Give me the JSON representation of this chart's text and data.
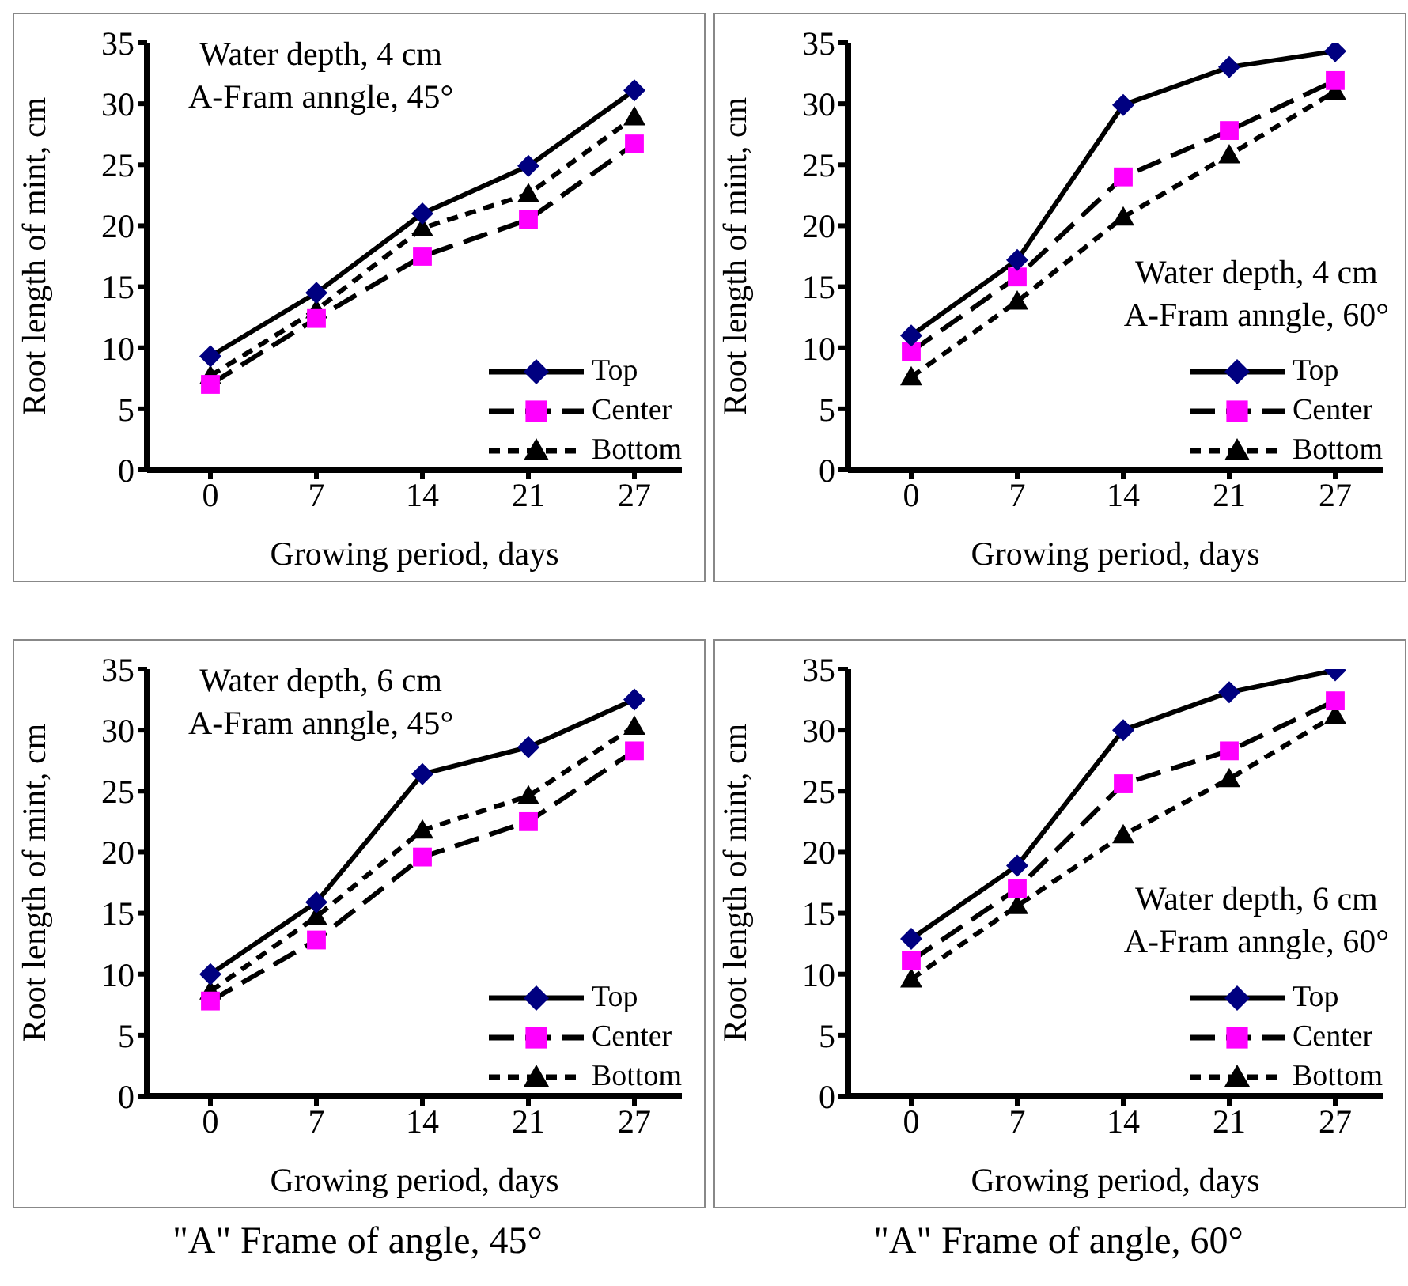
{
  "chart_data": [
    {
      "type": "line",
      "title": "Water depth, 4 cm",
      "subtitle": "A-Fram anngle, 45°",
      "xlabel": "Growing period, days",
      "ylabel": "Root length of mint, cm",
      "categories": [
        "0",
        "7",
        "14",
        "21",
        "27"
      ],
      "ylim": [
        0,
        35
      ],
      "yticks": [
        0,
        5,
        10,
        15,
        20,
        25,
        30,
        35
      ],
      "grid": false,
      "legend": "bottom right",
      "series": [
        {
          "name": "Top",
          "color": "#000080",
          "marker": "diamond",
          "line_style": "solid",
          "values": [
            9.3,
            14.5,
            21.0,
            24.9,
            31.1
          ]
        },
        {
          "name": "Center",
          "color": "#ff00ff",
          "marker": "square",
          "line_style": "dashed",
          "values": [
            7.0,
            12.4,
            17.5,
            20.5,
            26.7
          ]
        },
        {
          "name": "Bottom",
          "color": "#000000",
          "marker": "triangle",
          "line_style": "dotted",
          "values": [
            7.7,
            13.1,
            19.8,
            22.6,
            28.9
          ]
        }
      ]
    },
    {
      "type": "line",
      "title": "Water depth, 4 cm",
      "subtitle": "A-Fram anngle, 60°",
      "xlabel": "Growing period, days",
      "ylabel": "Root length of mint, cm",
      "categories": [
        "0",
        "7",
        "14",
        "21",
        "27"
      ],
      "ylim": [
        0,
        35
      ],
      "yticks": [
        0,
        5,
        10,
        15,
        20,
        25,
        30,
        35
      ],
      "grid": false,
      "legend": "bottom right",
      "series": [
        {
          "name": "Top",
          "color": "#000080",
          "marker": "diamond",
          "line_style": "solid",
          "values": [
            11.0,
            17.2,
            29.9,
            33.0,
            34.3
          ]
        },
        {
          "name": "Center",
          "color": "#ff00ff",
          "marker": "square",
          "line_style": "dashed",
          "values": [
            9.7,
            15.8,
            24.0,
            27.8,
            31.9
          ]
        },
        {
          "name": "Bottom",
          "color": "#000000",
          "marker": "triangle",
          "line_style": "dotted",
          "values": [
            7.6,
            13.8,
            20.7,
            25.8,
            31.0
          ]
        }
      ]
    },
    {
      "type": "line",
      "title": "Water depth, 6 cm",
      "subtitle": "A-Fram anngle, 45°",
      "xlabel": "Growing period, days",
      "ylabel": "Root length of mint, cm",
      "categories": [
        "0",
        "7",
        "14",
        "21",
        "27"
      ],
      "ylim": [
        0,
        35
      ],
      "yticks": [
        0,
        5,
        10,
        15,
        20,
        25,
        30,
        35
      ],
      "grid": false,
      "legend": "bottom right",
      "annotations": [
        "\"A\" Frame of angle, 45°"
      ],
      "series": [
        {
          "name": "Top",
          "color": "#000080",
          "marker": "diamond",
          "line_style": "solid",
          "values": [
            10.0,
            15.9,
            26.4,
            28.6,
            32.5
          ]
        },
        {
          "name": "Center",
          "color": "#ff00ff",
          "marker": "square",
          "line_style": "dashed",
          "values": [
            7.8,
            12.8,
            19.6,
            22.5,
            28.3
          ]
        },
        {
          "name": "Bottom",
          "color": "#000000",
          "marker": "triangle",
          "line_style": "dotted",
          "values": [
            8.6,
            14.7,
            21.8,
            24.6,
            30.3
          ]
        }
      ]
    },
    {
      "type": "line",
      "title": "Water depth, 6 cm",
      "subtitle": "A-Fram anngle, 60°",
      "xlabel": "Growing period, days",
      "ylabel": "Root length of mint, cm",
      "categories": [
        "0",
        "7",
        "14",
        "21",
        "27"
      ],
      "ylim": [
        0,
        35
      ],
      "yticks": [
        0,
        5,
        10,
        15,
        20,
        25,
        30,
        35
      ],
      "grid": false,
      "legend": "bottom right",
      "annotations": [
        "\"A\" Frame of angle, 60°"
      ],
      "series": [
        {
          "name": "Top",
          "color": "#000080",
          "marker": "diamond",
          "line_style": "solid",
          "values": [
            12.9,
            18.9,
            30.0,
            33.1,
            34.9
          ]
        },
        {
          "name": "Center",
          "color": "#ff00ff",
          "marker": "square",
          "line_style": "dashed",
          "values": [
            11.1,
            17.0,
            25.6,
            28.3,
            32.4
          ]
        },
        {
          "name": "Bottom",
          "color": "#000000",
          "marker": "triangle",
          "line_style": "dotted",
          "values": [
            9.6,
            15.6,
            21.4,
            26.0,
            31.2
          ]
        }
      ]
    }
  ]
}
